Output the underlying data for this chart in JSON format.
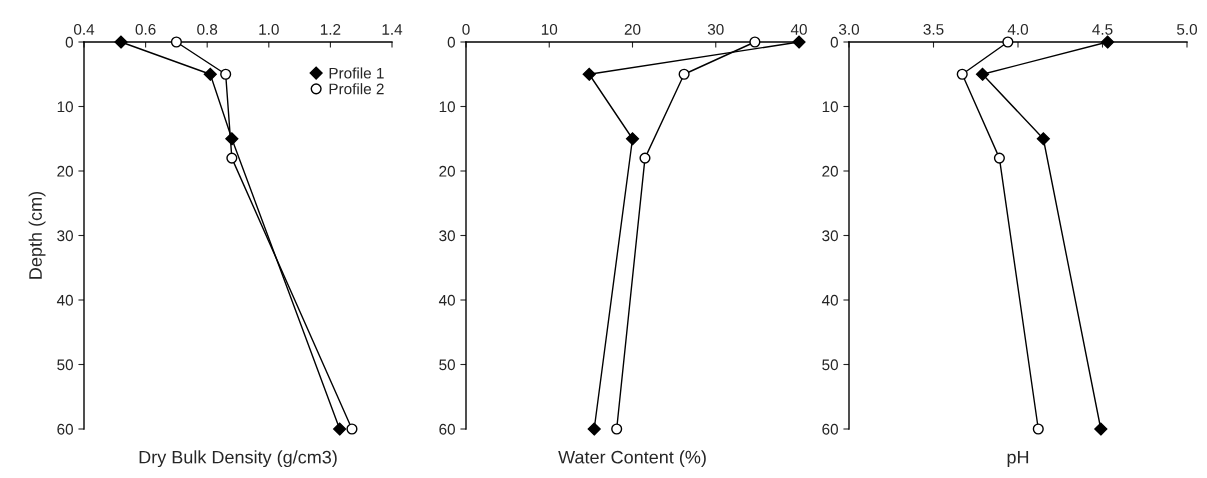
{
  "chart_data": [
    {
      "type": "line",
      "orientation": "horizontal",
      "xlabel": "Dry Bulk Density (g/cm3)",
      "ylabel": "Depth (cm)",
      "xlim": [
        0.4,
        1.4
      ],
      "xticks": [
        {
          "value": 0.4,
          "label": "0.4"
        },
        {
          "value": 0.6,
          "label": "0.6"
        },
        {
          "value": 0.8,
          "label": "0.8"
        },
        {
          "value": 1.0,
          "label": "1.0"
        },
        {
          "value": 1.2,
          "label": "1.2"
        },
        {
          "value": 1.4,
          "label": "1.4"
        }
      ],
      "ylim": [
        60,
        0
      ],
      "yticks": [
        0,
        10,
        20,
        30,
        40,
        50,
        60
      ],
      "legend": "top right",
      "grid": false,
      "series": [
        {
          "name": "Profile 1",
          "color": "#000000",
          "marker": "diamond",
          "x": [
            0,
            5,
            15,
            60
          ],
          "values": [
            0.52,
            0.81,
            0.88,
            1.23
          ]
        },
        {
          "name": "Profile 2",
          "color": "#000000",
          "marker": "circle",
          "x": [
            0,
            5,
            18,
            60
          ],
          "values": [
            0.7,
            0.86,
            0.88,
            1.27
          ]
        }
      ]
    },
    {
      "type": "line",
      "orientation": "horizontal",
      "xlabel": "Water Content (%)",
      "xlim": [
        0,
        40
      ],
      "xticks": [
        0,
        10,
        20,
        30,
        40
      ],
      "ylim": [
        60,
        0
      ],
      "yticks": [
        0,
        10,
        20,
        30,
        40,
        50,
        60
      ],
      "grid": false,
      "series": [
        {
          "color": "#000000",
          "marker": "diamond",
          "x": [
            0,
            5,
            15,
            60
          ],
          "values": [
            40,
            14.8,
            20.0,
            15.4
          ]
        },
        {
          "color": "#000000",
          "marker": "circle",
          "x": [
            0,
            5,
            18,
            60
          ],
          "values": [
            34.7,
            26.2,
            21.5,
            18.1
          ]
        }
      ]
    },
    {
      "type": "line",
      "orientation": "horizontal",
      "xlabel": "pH",
      "xlim": [
        3.0,
        5.0
      ],
      "xticks": [
        {
          "value": 3.0,
          "label": "3.0"
        },
        {
          "value": 3.5,
          "label": "3.5"
        },
        {
          "value": 4.0,
          "label": "4.0"
        },
        {
          "value": 4.5,
          "label": "4.5"
        },
        {
          "value": 5.0,
          "label": "5.0"
        }
      ],
      "ylim": [
        60,
        0
      ],
      "yticks": [
        0,
        10,
        20,
        30,
        40,
        50,
        60
      ],
      "grid": false,
      "series": [
        {
          "color": "#000000",
          "marker": "diamond",
          "x": [
            0,
            5,
            15,
            60
          ],
          "values": [
            4.53,
            3.79,
            4.15,
            4.49
          ]
        },
        {
          "color": "#000000",
          "marker": "circle",
          "x": [
            0,
            5,
            18,
            60
          ],
          "values": [
            3.94,
            3.67,
            3.89,
            4.12
          ]
        }
      ]
    }
  ]
}
